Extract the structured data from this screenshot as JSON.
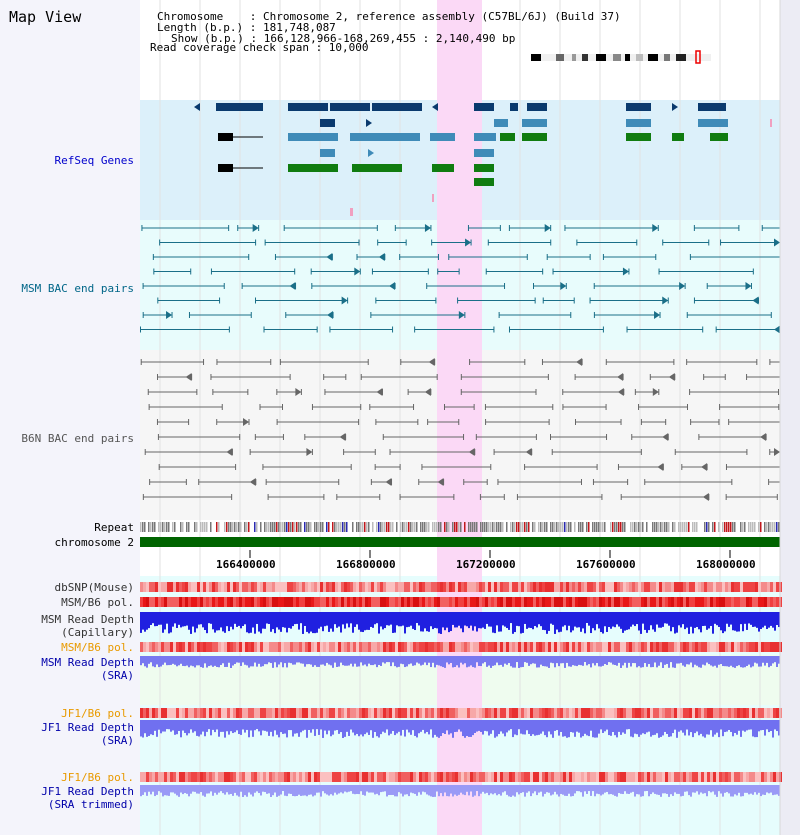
{
  "view_title": "Map View",
  "info": {
    "chromosome_line": "Chromosome    : Chromosome 2, reference assembly (C57BL/6J) (Build 37)",
    "length_line": "Length (b.p.) : 181,748,087",
    "show_line": "Show (b.p.) : 166,128,966-168,269,455 : 2,140,490 bp",
    "coverage_line": "Read coverage check span : 10,000"
  },
  "tracks": {
    "refseq": "RefSeq Genes",
    "msm_bac": "MSM BAC end pairs",
    "b6n_bac": "B6N BAC end pairs",
    "repeat": "Repeat",
    "chromosome": "chromosome 2",
    "dbsnp": "dbSNP(Mouse)",
    "msm_b6_pol_1": "MSM/B6 pol.",
    "msm_read_cap_1": "MSM Read Depth",
    "msm_read_cap_2": "(Capillary)",
    "msm_b6_pol_2": "MSM/B6 pol.",
    "msm_read_sra_1": "MSM Read Depth",
    "msm_read_sra_2": "(SRA)",
    "jf1_b6_pol_1": "JF1/B6 pol.",
    "jf1_read_sra_1": "JF1 Read Depth",
    "jf1_read_sra_2": "(SRA)",
    "jf1_b6_pol_2": "JF1/B6 pol.",
    "jf1_read_trim_1": "JF1 Read Depth",
    "jf1_read_trim_2": "(SRA trimmed)"
  },
  "axis_ticks": [
    "166400000",
    "166800000",
    "167200000",
    "167600000",
    "168000000"
  ],
  "colors": {
    "refseq_label": "#0000cc",
    "msm_bac_label": "#006688",
    "b6n_bac_label": "#555555",
    "orange_label": "#e89a00",
    "blue_label": "#0000aa",
    "highlight": "#fbd9f6",
    "chromosome_bar": "#006400"
  }
}
